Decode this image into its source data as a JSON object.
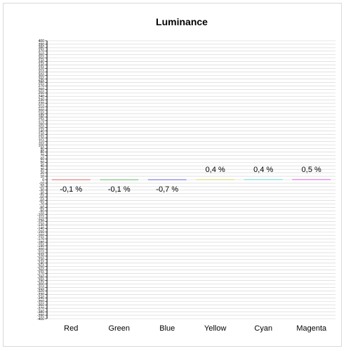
{
  "chart_data": {
    "type": "bar",
    "title": "Luminance",
    "xlabel": "",
    "ylabel": "",
    "categories": [
      "Red",
      "Green",
      "Blue",
      "Yellow",
      "Cyan",
      "Magenta"
    ],
    "values": [
      -0.1,
      -0.1,
      -0.7,
      0.4,
      0.4,
      0.5
    ],
    "value_labels": [
      "-0,1 %",
      "-0,1 %",
      "-0,7 %",
      "0,4 %",
      "0,4 %",
      "0,5 %"
    ],
    "series_colors": [
      "#e08080",
      "#80c080",
      "#8080e0",
      "#e0e080",
      "#80e0e0",
      "#e080e0"
    ],
    "ylim": [
      -400,
      400
    ],
    "grid": true,
    "legend": "none",
    "colors": {
      "gridline": "#d0d0d0",
      "axis": "#000000",
      "frame": "#d9d9d9"
    }
  }
}
